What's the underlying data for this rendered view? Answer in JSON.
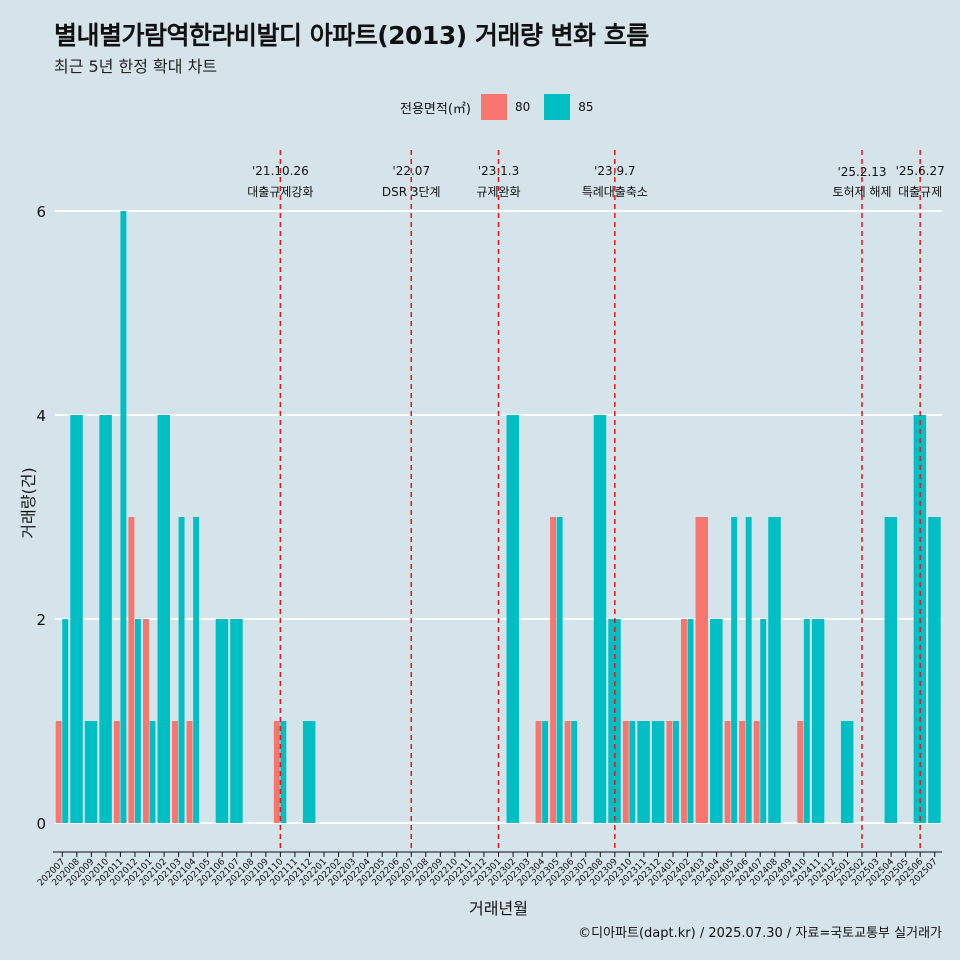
{
  "header": {
    "title": "별내별가람역한라비발디 아파트(2013) 거래량 변화 흐름",
    "subtitle": "최근 5년 한정 확대 차트"
  },
  "legend": {
    "title": "전용면적(㎡)",
    "items": [
      {
        "label": "80",
        "color": "#f8766d"
      },
      {
        "label": "85",
        "color": "#00bfc4"
      }
    ]
  },
  "caption": "©디아파트(dapt.kr) / 2025.07.30 / 자료=국토교통부 실거래가",
  "chart_data": {
    "type": "bar",
    "xlabel": "거래년월",
    "ylabel": "거래량(건)",
    "ylim": [
      0,
      6
    ],
    "yticks": [
      "0",
      "2",
      "4",
      "6"
    ],
    "categories": [
      "202007",
      "202008",
      "202009",
      "202010",
      "202011",
      "202012",
      "202101",
      "202102",
      "202103",
      "202104",
      "202105",
      "202106",
      "202107",
      "202108",
      "202109",
      "202110",
      "202111",
      "202112",
      "202201",
      "202202",
      "202203",
      "202204",
      "202205",
      "202206",
      "202207",
      "202208",
      "202209",
      "202210",
      "202211",
      "202212",
      "202301",
      "202302",
      "202303",
      "202304",
      "202305",
      "202306",
      "202307",
      "202308",
      "202309",
      "202310",
      "202311",
      "202312",
      "202401",
      "202402",
      "202403",
      "202404",
      "202405",
      "202406",
      "202407",
      "202408",
      "202409",
      "202410",
      "202411",
      "202412",
      "202501",
      "202502",
      "202503",
      "202504",
      "202505",
      "202506",
      "202507"
    ],
    "series": [
      {
        "name": "80",
        "values": [
          1,
          0,
          0,
          0,
          1,
          3,
          2,
          0,
          1,
          1,
          0,
          0,
          0,
          0,
          0,
          1,
          0,
          0,
          0,
          0,
          0,
          0,
          0,
          0,
          0,
          0,
          0,
          0,
          0,
          0,
          0,
          0,
          0,
          1,
          3,
          1,
          0,
          0,
          0,
          1,
          0,
          0,
          1,
          2,
          3,
          0,
          1,
          1,
          1,
          0,
          0,
          1,
          0,
          0,
          0,
          0,
          0,
          0,
          0,
          0,
          0
        ]
      },
      {
        "name": "85",
        "values": [
          2,
          4,
          1,
          4,
          6,
          2,
          1,
          4,
          3,
          3,
          0,
          2,
          2,
          0,
          0,
          1,
          0,
          1,
          0,
          0,
          0,
          0,
          0,
          0,
          0,
          0,
          0,
          0,
          0,
          0,
          0,
          4,
          0,
          1,
          3,
          1,
          0,
          4,
          2,
          1,
          1,
          1,
          1,
          2,
          0,
          2,
          3,
          3,
          2,
          3,
          0,
          2,
          2,
          0,
          1,
          0,
          0,
          3,
          0,
          4,
          3
        ]
      }
    ],
    "events": [
      {
        "date": "'21.10.26",
        "label": "대출규제강화",
        "month": "202110"
      },
      {
        "date": "'22.07",
        "label": "DSR 3단계",
        "month": "202207"
      },
      {
        "date": "'23.1.3",
        "label": "규제완화",
        "month": "202301"
      },
      {
        "date": "'23.9.7",
        "label": "특례대출축소",
        "month": "202309"
      },
      {
        "date": "'25.2.13",
        "label": "토허제 해제",
        "month": "202502"
      },
      {
        "date": "'25.6.27",
        "label": "대출규제",
        "month": "202506"
      }
    ]
  }
}
